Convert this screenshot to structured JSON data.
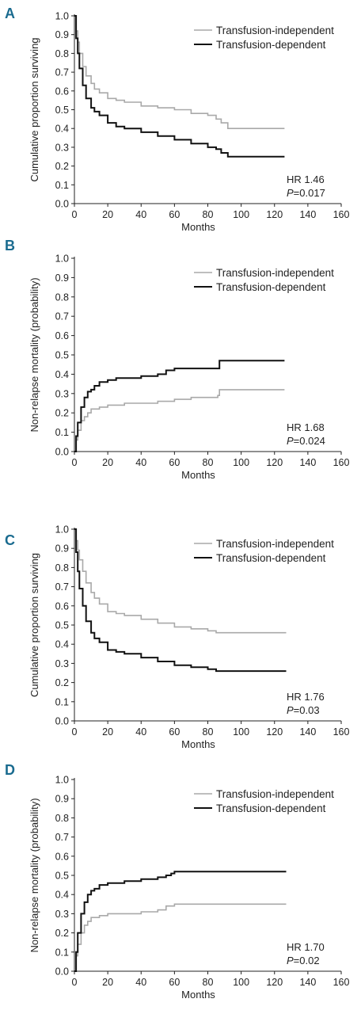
{
  "chart_data": [
    {
      "panel": "A",
      "type": "line",
      "xlabel": "Months",
      "ylabel": "Cumulative proportion surviving",
      "xlim": [
        0,
        160
      ],
      "ylim": [
        0,
        1.0
      ],
      "xticks": [
        "0",
        "20",
        "40",
        "60",
        "80",
        "100",
        "120",
        "140",
        "160"
      ],
      "yticks": [
        "0.0",
        "0.1",
        "0.2",
        "0.3",
        "0.4",
        "0.5",
        "0.6",
        "0.7",
        "0.8",
        "0.9",
        "1.0"
      ],
      "legend_position": "top-right",
      "annotation": {
        "hr": "HR 1.46",
        "p_label": "P",
        "p_value": "=0.017"
      },
      "series": [
        {
          "name": "Transfusion-independent",
          "color": "#a9a9a9",
          "x": [
            0,
            1,
            2,
            3,
            5,
            7,
            10,
            12,
            15,
            20,
            25,
            30,
            40,
            50,
            60,
            70,
            80,
            85,
            88,
            92,
            126
          ],
          "y": [
            1.0,
            0.92,
            0.86,
            0.8,
            0.73,
            0.68,
            0.64,
            0.61,
            0.59,
            0.56,
            0.55,
            0.54,
            0.52,
            0.51,
            0.5,
            0.48,
            0.47,
            0.45,
            0.43,
            0.4,
            0.4
          ]
        },
        {
          "name": "Transfusion-dependent",
          "color": "#111111",
          "x": [
            0,
            1,
            2,
            3,
            5,
            7,
            10,
            12,
            15,
            20,
            25,
            30,
            40,
            50,
            60,
            70,
            80,
            85,
            88,
            92,
            126
          ],
          "y": [
            1.0,
            0.88,
            0.8,
            0.72,
            0.63,
            0.56,
            0.51,
            0.49,
            0.47,
            0.43,
            0.41,
            0.4,
            0.38,
            0.36,
            0.34,
            0.32,
            0.3,
            0.29,
            0.27,
            0.25,
            0.25
          ]
        }
      ]
    },
    {
      "panel": "B",
      "type": "line",
      "xlabel": "Months",
      "ylabel": "Non-relapse mortality (probability)",
      "xlim": [
        0,
        160
      ],
      "ylim": [
        0,
        1.0
      ],
      "xticks": [
        "0",
        "20",
        "40",
        "60",
        "80",
        "100",
        "120",
        "140",
        "160"
      ],
      "yticks": [
        "0.0",
        "0.1",
        "0.2",
        "0.3",
        "0.4",
        "0.5",
        "0.6",
        "0.7",
        "0.8",
        "0.9",
        "1.0"
      ],
      "legend_position": "top-right",
      "annotation": {
        "hr": "HR 1.68",
        "p_label": "P",
        "p_value": "=0.024"
      },
      "series": [
        {
          "name": "Transfusion-independent",
          "color": "#a9a9a9",
          "x": [
            0,
            1,
            2,
            4,
            6,
            8,
            10,
            15,
            20,
            30,
            40,
            50,
            60,
            70,
            80,
            86,
            87,
            126
          ],
          "y": [
            0,
            0.06,
            0.11,
            0.16,
            0.18,
            0.2,
            0.22,
            0.23,
            0.24,
            0.25,
            0.25,
            0.26,
            0.27,
            0.28,
            0.28,
            0.29,
            0.32,
            0.32
          ]
        },
        {
          "name": "Transfusion-dependent",
          "color": "#111111",
          "x": [
            0,
            1,
            2,
            4,
            6,
            8,
            10,
            12,
            15,
            20,
            25,
            30,
            40,
            50,
            55,
            60,
            70,
            80,
            86,
            87,
            126
          ],
          "y": [
            0,
            0.08,
            0.15,
            0.23,
            0.28,
            0.31,
            0.32,
            0.34,
            0.36,
            0.37,
            0.38,
            0.38,
            0.39,
            0.4,
            0.42,
            0.43,
            0.43,
            0.43,
            0.43,
            0.47,
            0.47
          ]
        }
      ]
    },
    {
      "panel": "C",
      "type": "line",
      "xlabel": "Months",
      "ylabel": "Cumulative proportion surviving",
      "xlim": [
        0,
        160
      ],
      "ylim": [
        0,
        1.0
      ],
      "xticks": [
        "0",
        "20",
        "40",
        "60",
        "80",
        "100",
        "120",
        "140",
        "160"
      ],
      "yticks": [
        "0.0",
        "0.1",
        "0.2",
        "0.3",
        "0.4",
        "0.5",
        "0.6",
        "0.7",
        "0.8",
        "0.9",
        "1.0"
      ],
      "legend_position": "top-right",
      "annotation": {
        "hr": "HR 1.76",
        "p_label": "P",
        "p_value": "=0.03"
      },
      "series": [
        {
          "name": "Transfusion-independent",
          "color": "#a9a9a9",
          "x": [
            0,
            1,
            2,
            3,
            5,
            7,
            10,
            12,
            15,
            20,
            25,
            30,
            40,
            50,
            60,
            70,
            80,
            85,
            127
          ],
          "y": [
            1.0,
            0.94,
            0.89,
            0.84,
            0.78,
            0.72,
            0.67,
            0.64,
            0.61,
            0.57,
            0.56,
            0.55,
            0.53,
            0.51,
            0.49,
            0.48,
            0.47,
            0.46,
            0.46
          ]
        },
        {
          "name": "Transfusion-dependent",
          "color": "#111111",
          "x": [
            0,
            1,
            2,
            3,
            5,
            7,
            10,
            12,
            15,
            20,
            25,
            30,
            40,
            50,
            60,
            70,
            80,
            85,
            127
          ],
          "y": [
            1.0,
            0.88,
            0.78,
            0.69,
            0.6,
            0.52,
            0.46,
            0.43,
            0.41,
            0.37,
            0.36,
            0.35,
            0.33,
            0.31,
            0.29,
            0.28,
            0.27,
            0.26,
            0.26
          ]
        }
      ]
    },
    {
      "panel": "D",
      "type": "line",
      "xlabel": "Months",
      "ylabel": "Non-relapse mortality (probability)",
      "xlim": [
        0,
        160
      ],
      "ylim": [
        0,
        1.0
      ],
      "xticks": [
        "0",
        "20",
        "40",
        "60",
        "80",
        "100",
        "120",
        "140",
        "160"
      ],
      "yticks": [
        "0.0",
        "0.1",
        "0.2",
        "0.3",
        "0.4",
        "0.5",
        "0.6",
        "0.7",
        "0.8",
        "0.9",
        "1.0"
      ],
      "legend_position": "top-right",
      "annotation": {
        "hr": "HR 1.70",
        "p_label": "P",
        "p_value": "=0.02"
      },
      "series": [
        {
          "name": "Transfusion-independent",
          "color": "#a9a9a9",
          "x": [
            0,
            1,
            2,
            4,
            6,
            8,
            10,
            15,
            20,
            30,
            40,
            50,
            55,
            60,
            127
          ],
          "y": [
            0,
            0.08,
            0.14,
            0.2,
            0.24,
            0.26,
            0.28,
            0.29,
            0.3,
            0.3,
            0.31,
            0.32,
            0.34,
            0.35,
            0.35
          ]
        },
        {
          "name": "Transfusion-dependent",
          "color": "#111111",
          "x": [
            0,
            1,
            2,
            4,
            6,
            8,
            10,
            12,
            15,
            20,
            30,
            40,
            50,
            55,
            58,
            60,
            127
          ],
          "y": [
            0,
            0.1,
            0.2,
            0.3,
            0.36,
            0.4,
            0.42,
            0.43,
            0.45,
            0.46,
            0.47,
            0.48,
            0.49,
            0.5,
            0.51,
            0.52,
            0.52
          ]
        }
      ]
    }
  ]
}
